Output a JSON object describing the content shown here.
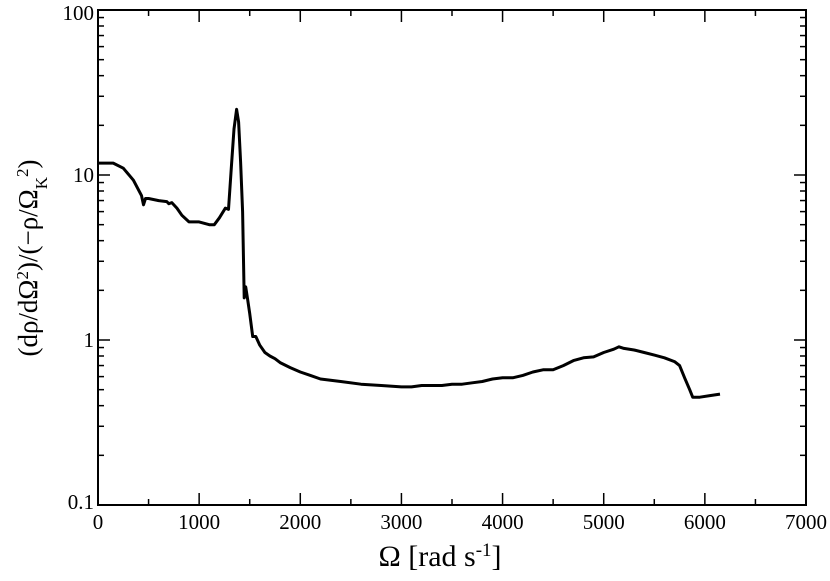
{
  "chart_data": {
    "type": "line",
    "title": "",
    "xlabel": {
      "base": "Ω [rad s",
      "sup": "-1",
      "tail": "]"
    },
    "ylabel": {
      "p1": "(dρ/dΩ",
      "sup1": "2",
      "p2": ")/(−ρ/Ω",
      "sub": "K",
      "sup2": "2",
      "p3": ")"
    },
    "xlim": [
      0,
      7000
    ],
    "ylim": [
      0.1,
      100
    ],
    "yscale": "log",
    "grid": false,
    "x_ticks": [
      0,
      1000,
      2000,
      3000,
      4000,
      5000,
      6000,
      7000
    ],
    "x_tick_labels": [
      "0",
      "1000",
      "2000",
      "3000",
      "4000",
      "5000",
      "6000",
      "7000"
    ],
    "y_ticks": [
      0.1,
      1,
      10,
      100
    ],
    "y_tick_labels": [
      "0.1",
      "1",
      "10",
      "100"
    ],
    "line_color": "#000000",
    "series": [
      {
        "x": [
          0,
          150,
          250,
          350,
          430,
          450,
          470,
          500,
          600,
          680,
          700,
          730,
          780,
          830,
          900,
          1000,
          1050,
          1100,
          1150,
          1200,
          1260,
          1290,
          1320,
          1345,
          1370,
          1390,
          1410,
          1430,
          1445,
          1460,
          1480,
          1500,
          1530,
          1560,
          1600,
          1650,
          1700,
          1750,
          1800,
          1900,
          2000,
          2100,
          2200,
          2300,
          2400,
          2600,
          2800,
          3000,
          3100,
          3200,
          3300,
          3400,
          3500,
          3600,
          3700,
          3800,
          3900,
          4000,
          4100,
          4200,
          4300,
          4400,
          4500,
          4600,
          4700,
          4800,
          4900,
          5000,
          5100,
          5150,
          5200,
          5300,
          5400,
          5500,
          5600,
          5700,
          5750,
          5800,
          5850,
          5880,
          5950,
          6050,
          6150
        ],
        "y": [
          11.8,
          11.8,
          11.0,
          9.3,
          7.5,
          6.6,
          7.2,
          7.2,
          7.0,
          6.9,
          6.7,
          6.8,
          6.3,
          5.7,
          5.2,
          5.2,
          5.1,
          5.0,
          5.0,
          5.5,
          6.3,
          6.2,
          11.5,
          19.0,
          25.0,
          21.0,
          12.0,
          6.0,
          1.8,
          2.1,
          1.75,
          1.45,
          1.05,
          1.05,
          0.93,
          0.84,
          0.8,
          0.77,
          0.73,
          0.68,
          0.64,
          0.61,
          0.58,
          0.57,
          0.56,
          0.54,
          0.53,
          0.52,
          0.52,
          0.53,
          0.53,
          0.53,
          0.54,
          0.54,
          0.55,
          0.56,
          0.58,
          0.59,
          0.59,
          0.61,
          0.64,
          0.66,
          0.66,
          0.7,
          0.75,
          0.78,
          0.79,
          0.84,
          0.88,
          0.91,
          0.89,
          0.87,
          0.84,
          0.81,
          0.78,
          0.74,
          0.7,
          0.59,
          0.5,
          0.45,
          0.45,
          0.46,
          0.47
        ]
      }
    ]
  }
}
